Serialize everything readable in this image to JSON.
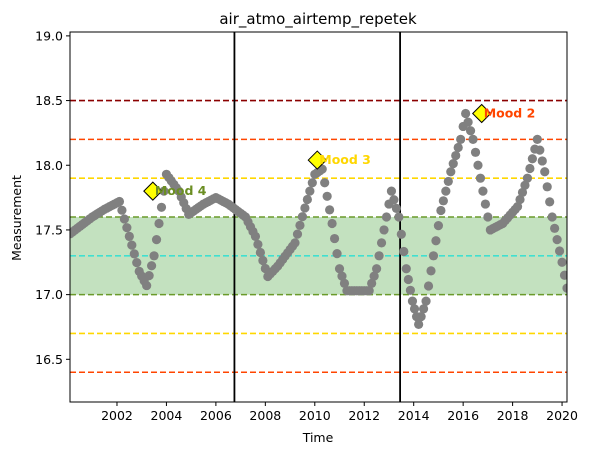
{
  "chart_data": {
    "type": "scatter",
    "title": "air_atmo_airtemp_repetek",
    "xlabel": "Time",
    "ylabel": "Measurement",
    "xlim": [
      2000.1,
      2020.2
    ],
    "ylim": [
      16.17,
      19.03
    ],
    "x_ticks": [
      2002,
      2004,
      2006,
      2008,
      2010,
      2012,
      2014,
      2016,
      2018,
      2020
    ],
    "y_ticks": [
      16.5,
      17.0,
      17.5,
      18.0,
      18.5,
      19.0
    ],
    "x_tick_labels": [
      "2002",
      "2004",
      "2006",
      "2008",
      "2010",
      "2012",
      "2014",
      "2016",
      "2018",
      "2020"
    ],
    "y_tick_labels": [
      "16.5",
      "17.0",
      "17.5",
      "18.0",
      "18.5",
      "19.0"
    ],
    "band": {
      "y0": 17.0,
      "y1": 17.6,
      "color": "#c3e1bf",
      "edge_color": "#6a9a2a"
    },
    "hlines": [
      {
        "y": 18.5,
        "color": "#8b0000"
      },
      {
        "y": 18.2,
        "color": "#ff4500"
      },
      {
        "y": 16.4,
        "color": "#ff4500"
      },
      {
        "y": 17.9,
        "color": "#ffd700"
      },
      {
        "y": 16.7,
        "color": "#ffd700"
      },
      {
        "y": 17.3,
        "color": "#40e0d0"
      }
    ],
    "vlines": [
      2006.75,
      2013.45
    ],
    "series_color": "#808080",
    "keypoints": [
      [
        2000.1,
        17.47
      ],
      [
        2001.0,
        17.6
      ],
      [
        2001.5,
        17.66
      ],
      [
        2002.1,
        17.72
      ],
      [
        2002.5,
        17.45
      ],
      [
        2002.9,
        17.18
      ],
      [
        2003.2,
        17.07
      ],
      [
        2003.5,
        17.3
      ],
      [
        2003.9,
        17.8
      ],
      [
        2004.0,
        17.93
      ],
      [
        2004.5,
        17.8
      ],
      [
        2004.9,
        17.62
      ],
      [
        2005.5,
        17.7
      ],
      [
        2006.0,
        17.75
      ],
      [
        2006.5,
        17.7
      ],
      [
        2007.2,
        17.6
      ],
      [
        2007.6,
        17.45
      ],
      [
        2008.1,
        17.14
      ],
      [
        2008.5,
        17.22
      ],
      [
        2009.2,
        17.4
      ],
      [
        2009.6,
        17.67
      ],
      [
        2010.0,
        17.93
      ],
      [
        2010.3,
        17.97
      ],
      [
        2010.7,
        17.55
      ],
      [
        2011.0,
        17.2
      ],
      [
        2011.3,
        17.03
      ],
      [
        2012.2,
        17.03
      ],
      [
        2012.5,
        17.2
      ],
      [
        2012.8,
        17.5
      ],
      [
        2013.1,
        17.8
      ],
      [
        2013.4,
        17.6
      ],
      [
        2013.7,
        17.2
      ],
      [
        2013.95,
        16.95
      ],
      [
        2014.2,
        16.77
      ],
      [
        2014.5,
        16.95
      ],
      [
        2014.8,
        17.3
      ],
      [
        2015.1,
        17.65
      ],
      [
        2015.5,
        17.95
      ],
      [
        2015.9,
        18.2
      ],
      [
        2016.1,
        18.4
      ],
      [
        2016.4,
        18.2
      ],
      [
        2016.7,
        17.9
      ],
      [
        2017.1,
        17.5
      ],
      [
        2017.6,
        17.55
      ],
      [
        2018.2,
        17.68
      ],
      [
        2018.6,
        17.9
      ],
      [
        2019.0,
        18.2
      ],
      [
        2019.3,
        17.95
      ],
      [
        2019.6,
        17.6
      ],
      [
        2020.0,
        17.25
      ],
      [
        2020.2,
        17.05
      ]
    ],
    "moods": [
      {
        "label": "Mood 4",
        "x": 2003.45,
        "y": 17.8,
        "color": "#6b8e23"
      },
      {
        "label": "Mood 3",
        "x": 2010.1,
        "y": 18.04,
        "color": "#ffd700"
      },
      {
        "label": "Mood 2",
        "x": 2016.75,
        "y": 18.4,
        "color": "#ff4500"
      }
    ]
  }
}
